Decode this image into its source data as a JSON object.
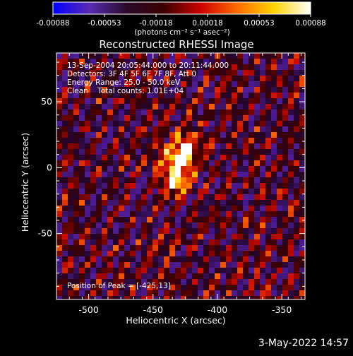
{
  "colorbar": {
    "tick_labels": [
      "-0.00088",
      "-0.00053",
      "-0.00018",
      "0.00018",
      "0.00053",
      "0.00088"
    ],
    "units_label": "(photons cm⁻² s⁻¹ asec⁻²)",
    "colors": [
      "#0000ff",
      "#5a2bb0",
      "#2a0a2a",
      "#3a0000",
      "#cc0000",
      "#ff6a00",
      "#ffd400",
      "#ffffff"
    ]
  },
  "title": "Reconstructed RHESSI Image",
  "info_lines": [
    "13-Sep-2004 20:05:44.000 to 20:11:44.000",
    "Detectors: 3F 4F 5F 6F 7F 8F, Att 0",
    "Energy Range: 25.0 - 50.0 keV",
    "Clean    Total counts: 1.01E+04"
  ],
  "peak_label": "Position of Peak = [-425,13]",
  "timestamp": "3-May-2022 14:57",
  "chart_data": {
    "type": "heatmap",
    "title": "Reconstructed RHESSI Image",
    "xlabel": "Heliocentric X (arcsec)",
    "ylabel": "Heliocentric Y (arcsec)",
    "xlim": [
      -525,
      -332
    ],
    "ylim": [
      -100,
      87
    ],
    "x_ticks": [
      -500,
      -450,
      -400,
      -350
    ],
    "y_ticks": [
      -50,
      0,
      50
    ],
    "x_tick_labels": [
      "-500",
      "-450",
      "-400",
      "-350"
    ],
    "y_tick_labels": [
      "-50",
      "0",
      "50"
    ],
    "color_range": [
      -0.00088,
      0.00088
    ],
    "peak_position": [
      -425,
      13
    ],
    "sources": [
      {
        "x": -425,
        "y": 13,
        "peak": 0.00088
      },
      {
        "x": -430,
        "y": -10,
        "peak": 0.00078
      },
      {
        "x": -440,
        "y": 5,
        "peak": 0.00045
      }
    ]
  }
}
